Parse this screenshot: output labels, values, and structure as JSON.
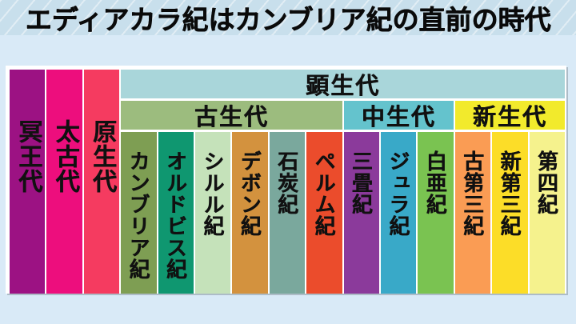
{
  "title": "エディアカラ紀はカンブリア紀の直前の時代",
  "colors": {
    "page_bg": "#d9eaf7",
    "title_band_bg": "#c8dfec",
    "panel_bg": "#ffffff",
    "text": "#0a0a0a"
  },
  "timeline": {
    "eons": [
      {
        "label": "冥王代",
        "color": "#9c1283"
      },
      {
        "label": "太古代",
        "color": "#ed0e7d"
      },
      {
        "label": "原生代",
        "color": "#f53b60"
      }
    ],
    "phanerozoic": {
      "label": "顕生代",
      "color": "#a9d6da"
    },
    "eras": [
      {
        "label": "古生代",
        "color": "#9cbc7e",
        "periods": [
          {
            "label": "カンブリア紀",
            "color": "#7e9e53"
          },
          {
            "label": "オルドビス紀",
            "color": "#0f9770"
          },
          {
            "label": "シルル紀",
            "color": "#c5e2ba"
          },
          {
            "label": "デボン紀",
            "color": "#d3923e"
          },
          {
            "label": "石炭紀",
            "color": "#7aa89d"
          },
          {
            "label": "ペルム紀",
            "color": "#eb4c2c"
          }
        ]
      },
      {
        "label": "中生代",
        "color": "#64c3cd",
        "periods": [
          {
            "label": "三畳紀",
            "color": "#8b3a9b"
          },
          {
            "label": "ジュラ紀",
            "color": "#39a9c8"
          },
          {
            "label": "白亜紀",
            "color": "#7ac351"
          }
        ]
      },
      {
        "label": "新生代",
        "color": "#f2ea2c",
        "periods": [
          {
            "label": "古第三紀",
            "color": "#fa9c54"
          },
          {
            "label": "新第三紀",
            "color": "#fcdd28"
          },
          {
            "label": "第四紀",
            "color": "#f5f28d"
          }
        ]
      }
    ]
  }
}
